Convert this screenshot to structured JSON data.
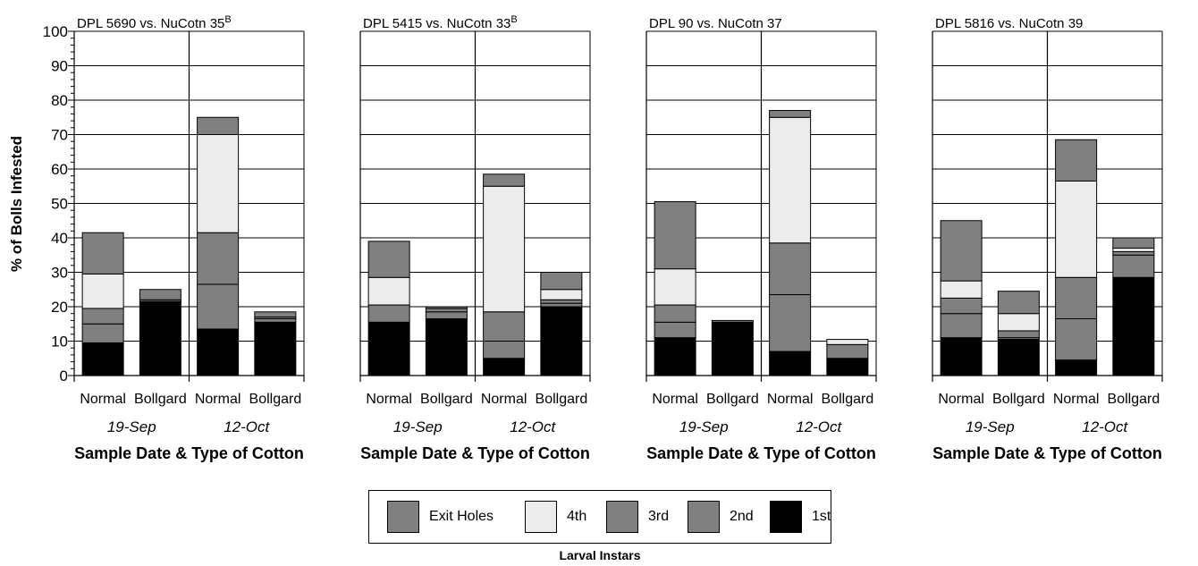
{
  "chart_data": {
    "type": "bar",
    "stacked": true,
    "ylabel": "% of Bolls Infested",
    "xlabel": "Sample Date & Type of Cotton",
    "ylim": [
      0,
      100
    ],
    "yticks": [
      "0",
      "10",
      "20",
      "30",
      "40",
      "50",
      "60",
      "70",
      "80",
      "90",
      "100"
    ],
    "categories": [
      "Normal",
      "Bollgard",
      "Normal",
      "Bollgard"
    ],
    "dates": [
      "19-Sep",
      "12-Oct"
    ],
    "legend": {
      "title": "Larval Instars",
      "items": [
        {
          "label": "Exit Holes",
          "color": "#808080"
        },
        {
          "label": "4th",
          "color": "#ececec"
        },
        {
          "label": "3rd",
          "color": "#808080"
        },
        {
          "label": "2nd",
          "color": "#808080"
        },
        {
          "label": "1st",
          "color": "#000000"
        }
      ]
    },
    "series_order": [
      "1st",
      "2nd",
      "3rd",
      "4th",
      "Exit Holes"
    ],
    "series_colors": [
      "#000000",
      "#808080",
      "#808080",
      "#ececec",
      "#808080"
    ],
    "panels": [
      {
        "title": "DPL 5690 vs. NuCotn 35",
        "title_superscript": "B",
        "stacks": [
          [
            9.5,
            5.5,
            4.5,
            10,
            12
          ],
          [
            21.5,
            0.5,
            0,
            0,
            3
          ],
          [
            13.5,
            13,
            15,
            28.5,
            5
          ],
          [
            15.5,
            1,
            0.5,
            0,
            1.5
          ]
        ]
      },
      {
        "title": "DPL 5415 vs. NuCotn 33",
        "title_superscript": "B",
        "stacks": [
          [
            15.5,
            0,
            5,
            8,
            10.5
          ],
          [
            16.5,
            2,
            1,
            0,
            0.5
          ],
          [
            5,
            5,
            8.5,
            36.5,
            3.5
          ],
          [
            20,
            1,
            1,
            3,
            5
          ]
        ]
      },
      {
        "title": "DPL 90 vs. NuCotn 37",
        "title_superscript": "",
        "stacks": [
          [
            11,
            4.5,
            5,
            10.5,
            19.5
          ],
          [
            15.5,
            0,
            0,
            0,
            0.5
          ],
          [
            7,
            16.5,
            15,
            36.5,
            2
          ],
          [
            5,
            0,
            4,
            1.5,
            0
          ]
        ]
      },
      {
        "title": "DPL 5816 vs. NuCotn 39",
        "title_superscript": "",
        "stacks": [
          [
            11,
            7,
            4.5,
            5,
            17.5
          ],
          [
            10.5,
            0.5,
            2,
            5,
            6.5
          ],
          [
            4.5,
            12,
            12,
            28,
            12
          ],
          [
            28.5,
            6.5,
            1,
            1,
            3
          ]
        ]
      }
    ]
  }
}
